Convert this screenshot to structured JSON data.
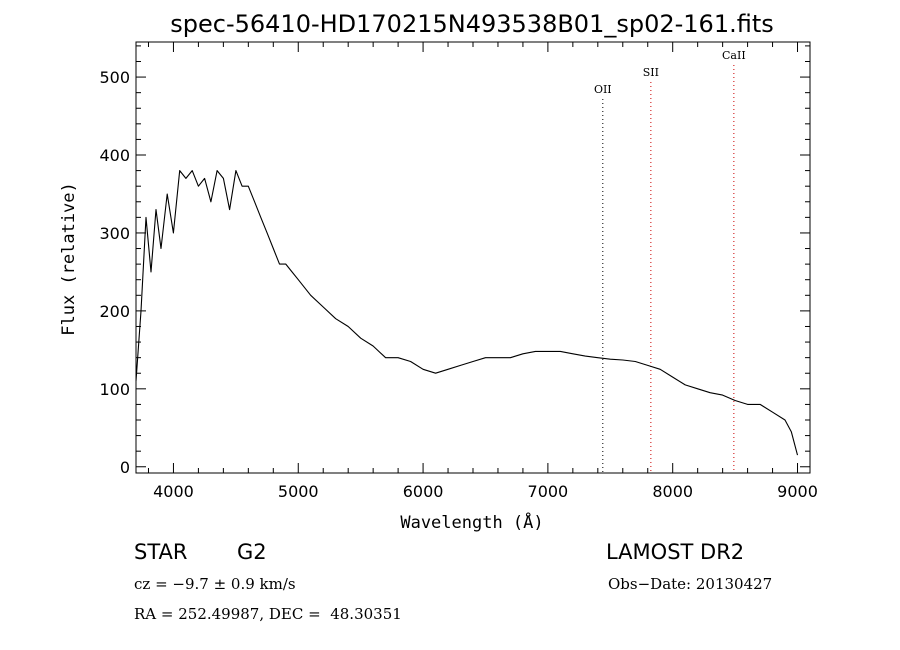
{
  "chart_data": {
    "type": "line",
    "title": "spec-56410-HD170215N493538B01_sp02-161.fits",
    "xlabel": "Wavelength (Å)",
    "ylabel": "Flux (relative)",
    "xlim": [
      3700,
      9100
    ],
    "ylim": [
      -8,
      545
    ],
    "x_ticks": [
      4000,
      5000,
      6000,
      7000,
      8000,
      9000
    ],
    "y_ticks": [
      0,
      100,
      200,
      300,
      400,
      500
    ],
    "series": [
      {
        "color": "#000000",
        "x": [
          3700,
          3740,
          3780,
          3820,
          3860,
          3900,
          3950,
          4000,
          4050,
          4100,
          4150,
          4200,
          4250,
          4300,
          4350,
          4400,
          4450,
          4500,
          4550,
          4600,
          4650,
          4700,
          4750,
          4800,
          4850,
          4900,
          4950,
          5000,
          5100,
          5200,
          5300,
          5400,
          5500,
          5600,
          5700,
          5800,
          5900,
          6000,
          6100,
          6200,
          6300,
          6400,
          6500,
          6600,
          6700,
          6800,
          6900,
          7000,
          7100,
          7200,
          7300,
          7400,
          7500,
          7600,
          7700,
          7800,
          7900,
          8000,
          8100,
          8200,
          8300,
          8400,
          8500,
          8600,
          8700,
          8800,
          8900,
          8950,
          9000
        ],
        "y": [
          110,
          200,
          320,
          250,
          330,
          280,
          350,
          300,
          380,
          370,
          380,
          360,
          370,
          340,
          380,
          370,
          330,
          380,
          360,
          360,
          340,
          320,
          300,
          280,
          260,
          260,
          250,
          240,
          220,
          205,
          190,
          180,
          165,
          155,
          140,
          140,
          135,
          125,
          120,
          125,
          130,
          135,
          140,
          140,
          140,
          145,
          148,
          148,
          148,
          145,
          142,
          140,
          138,
          137,
          135,
          130,
          125,
          115,
          105,
          100,
          95,
          92,
          85,
          80,
          80,
          70,
          60,
          45,
          15
        ]
      }
    ],
    "emission_lines": [
      {
        "label": "OII",
        "x": 7440,
        "color": "#000000"
      },
      {
        "label": "SII",
        "x": 7825,
        "color": "#cc0000"
      },
      {
        "label": "CaII",
        "x": 8490,
        "color": "#cc0000"
      }
    ],
    "grid": false,
    "legend": "none"
  },
  "info": {
    "object_class": "STAR",
    "subclass": "G2",
    "survey": "LAMOST DR2",
    "cz": "cz = −9.7 ± 0.9 km/s",
    "obs_date": "Obs−Date: 20130427",
    "coords": "RA = 252.49987, DEC =  48.30351"
  }
}
